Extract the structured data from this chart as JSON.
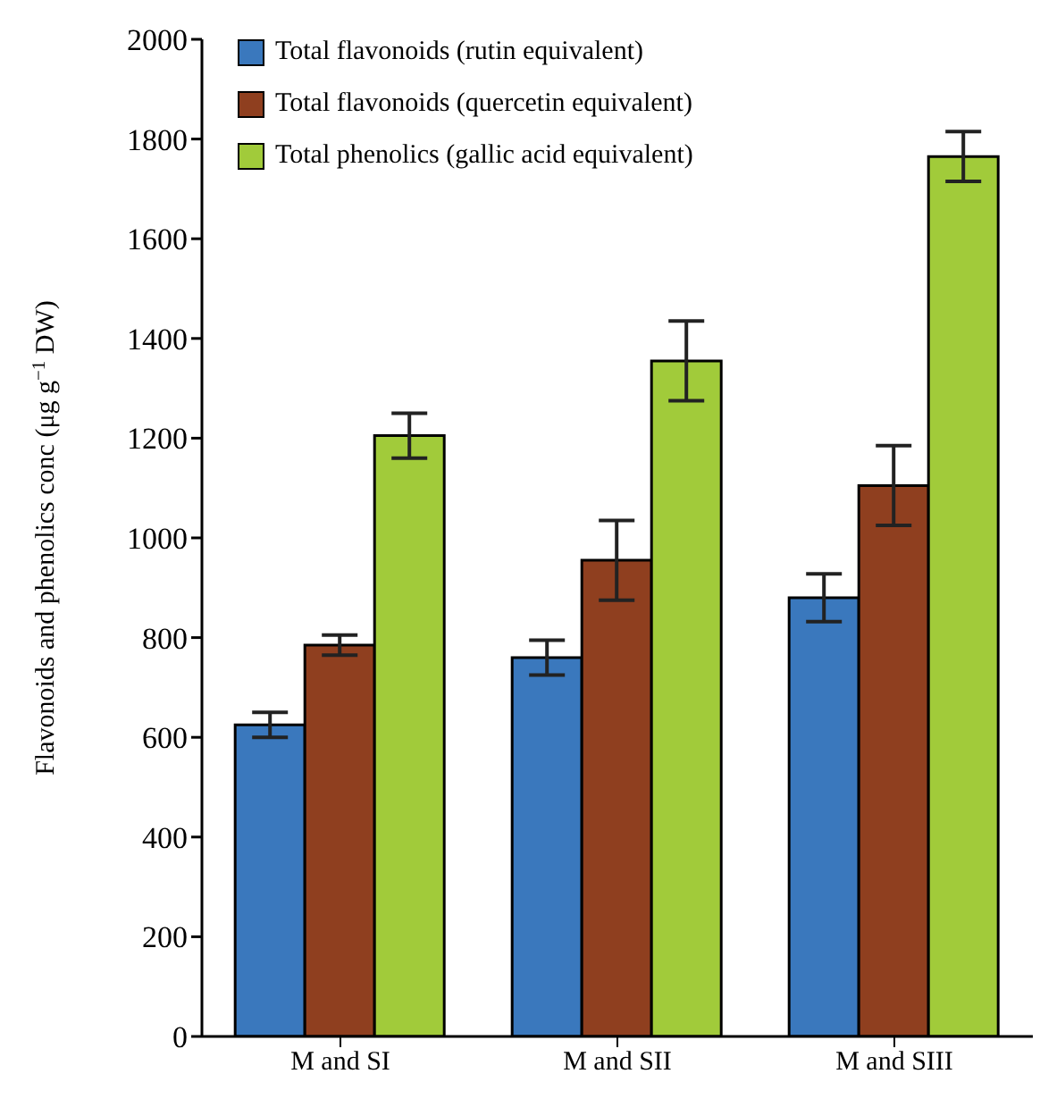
{
  "chart_data": {
    "type": "bar",
    "ylabel": "Flavonoids and phenolics conc (μg g$^{−1}$ DW)",
    "categories": [
      "M and SI",
      "M and SII",
      "M and SIII"
    ],
    "series": [
      {
        "name": "Total flavonoids (rutin equivalent)",
        "color": "#3a78bd",
        "values": [
          625,
          760,
          880
        ],
        "errors": [
          25,
          35,
          48
        ]
      },
      {
        "name": "Total flavonoids (quercetin equivalent)",
        "color": "#8f3f1f",
        "values": [
          785,
          955,
          1105
        ],
        "errors": [
          20,
          80,
          80
        ]
      },
      {
        "name": "Total phenolics (gallic acid equivalent)",
        "color": "#a1cb3a",
        "values": [
          1205,
          1355,
          1765
        ],
        "errors": [
          45,
          80,
          50
        ]
      }
    ],
    "ylim": [
      0,
      2000
    ],
    "yticks": [
      0,
      200,
      400,
      600,
      800,
      1000,
      1200,
      1400,
      1600,
      1800,
      2000
    ],
    "grid": false,
    "legend": "top left"
  }
}
